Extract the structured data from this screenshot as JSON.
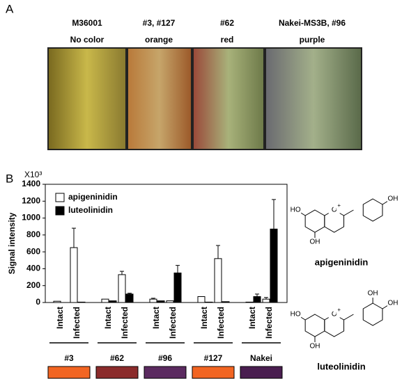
{
  "panel_a": {
    "label": "A",
    "photos": [
      {
        "line1": "M36001",
        "line2": "No  color"
      },
      {
        "line1": "#3, #127",
        "line2": "orange"
      },
      {
        "line1": "#62",
        "line2": "red"
      },
      {
        "line1": "Nakei-MS3B, #96",
        "line2": "purple"
      }
    ]
  },
  "chart_data": {
    "type": "bar",
    "panel_label": "B",
    "y_unit": "X10³",
    "ylabel": "Signal intensity",
    "categories": [
      "Intact",
      "Infected",
      "Intact",
      "Infected",
      "Intact",
      "Infected",
      "Intact",
      "Infected",
      "Intact",
      "Infected"
    ],
    "groups": [
      {
        "name": "#3",
        "color": "#f26522"
      },
      {
        "name": "#62",
        "color": "#8b2b2b"
      },
      {
        "name": "#96",
        "color": "#5b2a60"
      },
      {
        "name": "#127",
        "color": "#f26522"
      },
      {
        "name": "Nakei",
        "color": "#4a1e50"
      }
    ],
    "series": [
      {
        "name": "apigeninidin",
        "color": "#ffffff",
        "values": [
          15,
          650,
          40,
          330,
          40,
          20,
          70,
          520,
          5,
          40
        ],
        "errors": [
          null,
          230,
          null,
          40,
          10,
          null,
          null,
          155,
          null,
          20
        ]
      },
      {
        "name": "luteolinidin",
        "color": "#000000",
        "values": [
          0,
          5,
          20,
          100,
          20,
          350,
          5,
          10,
          70,
          870
        ],
        "errors": [
          null,
          null,
          null,
          10,
          null,
          90,
          null,
          null,
          30,
          350
        ]
      }
    ],
    "ylim": [
      0,
      1400
    ],
    "yticks": [
      0,
      200,
      400,
      600,
      800,
      1000,
      1200,
      1400
    ],
    "legend": "upper-left"
  },
  "structures": [
    {
      "name": "apigeninidin",
      "atoms": [
        "HO",
        "OH",
        "O",
        "+",
        "OH"
      ]
    },
    {
      "name": "luteolinidin",
      "atoms": [
        "HO",
        "OH",
        "O",
        "+",
        "OH",
        "OH"
      ]
    }
  ]
}
